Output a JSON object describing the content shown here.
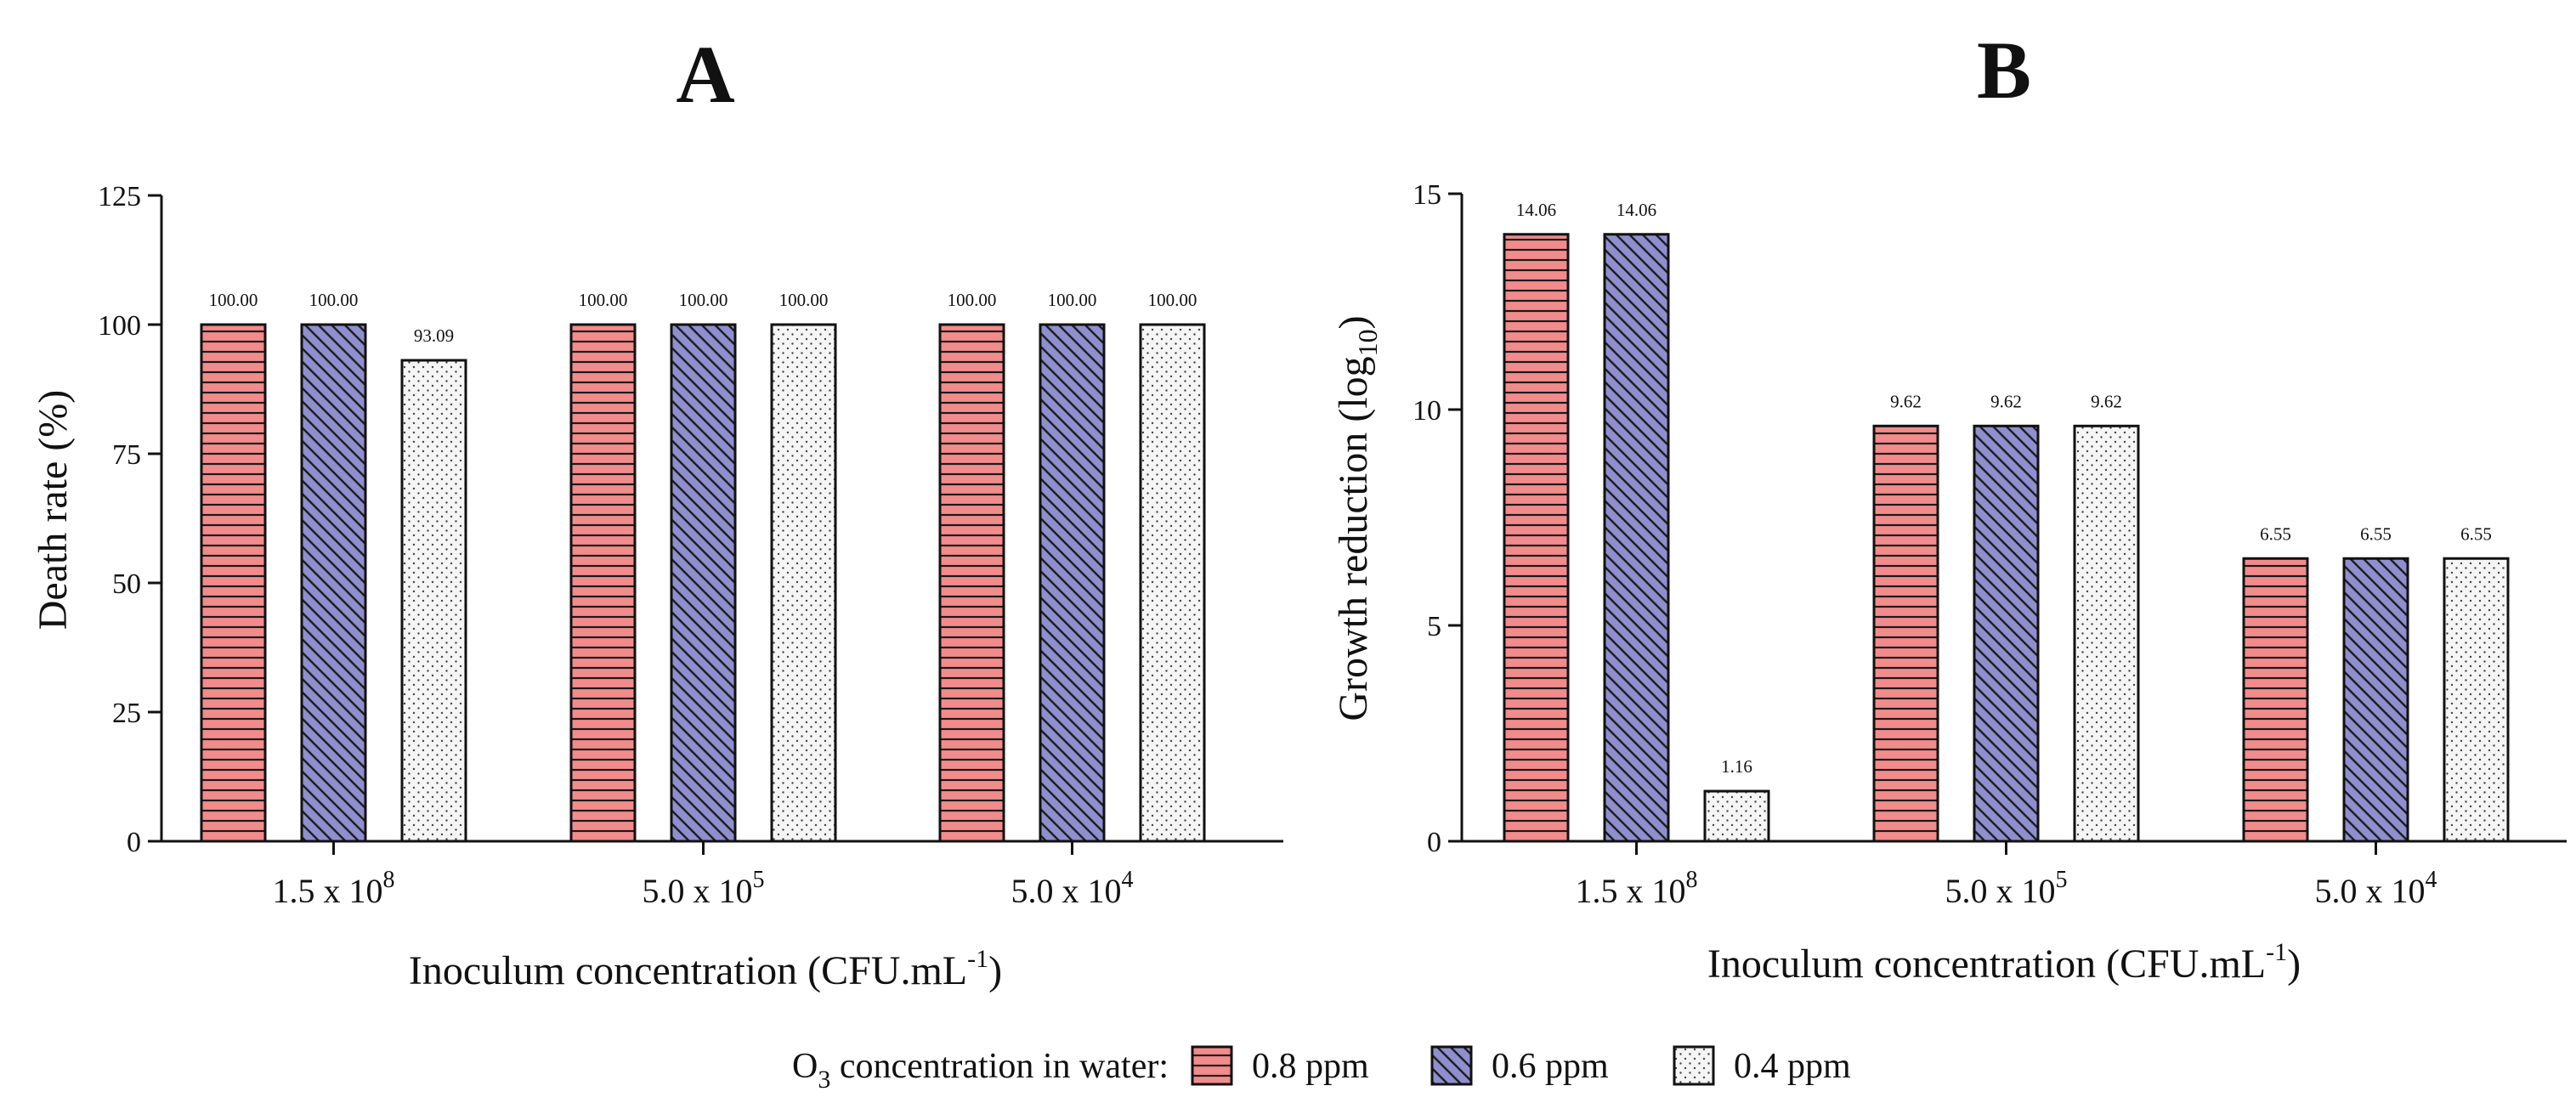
{
  "legend": {
    "title_prefix": "O",
    "title_sub": "3",
    "title_rest": " concentration in water:",
    "items": [
      {
        "label": "0.8 ppm",
        "pattern": "horizontal",
        "color": "#f28b8b"
      },
      {
        "label": "0.6 ppm",
        "pattern": "diagonal",
        "color": "#8f8fcf"
      },
      {
        "label": "0.4 ppm",
        "pattern": "dots",
        "color": "#f5f5f5"
      }
    ]
  },
  "chart_data": [
    {
      "type": "bar",
      "panel": "A",
      "title": "A",
      "ylabel": "Death rate (%)",
      "xlabel": {
        "main": "Inoculum concentration (CFU.mL",
        "sup": "-1",
        "end": ")"
      },
      "ylim": [
        0,
        125
      ],
      "yticks": [
        0,
        25,
        50,
        75,
        100,
        125
      ],
      "categories": [
        {
          "base": "1.5 x 10",
          "exp": "8"
        },
        {
          "base": "5.0 x 10",
          "exp": "5"
        },
        {
          "base": "5.0 x 10",
          "exp": "4"
        }
      ],
      "series": [
        {
          "name": "0.8 ppm",
          "values": [
            100.0,
            100.0,
            100.0
          ],
          "labels": [
            "100.00",
            "100.00",
            "100.00"
          ]
        },
        {
          "name": "0.6 ppm",
          "values": [
            100.0,
            100.0,
            100.0
          ],
          "labels": [
            "100.00",
            "100.00",
            "100.00"
          ]
        },
        {
          "name": "0.4 ppm",
          "values": [
            93.09,
            100.0,
            100.0
          ],
          "labels": [
            "93.09",
            "100.00",
            "100.00"
          ]
        }
      ]
    },
    {
      "type": "bar",
      "panel": "B",
      "title": "B",
      "ylabel": {
        "main": "Growth reduction (log",
        "sub": "10",
        "end": ")"
      },
      "xlabel": {
        "main": "Inoculum concentration (CFU.mL",
        "sup": "-1",
        "end": ")"
      },
      "ylim": [
        0,
        15
      ],
      "yticks": [
        0,
        5,
        10,
        15
      ],
      "categories": [
        {
          "base": "1.5 x 10",
          "exp": "8"
        },
        {
          "base": "5.0 x 10",
          "exp": "5"
        },
        {
          "base": "5.0 x 10",
          "exp": "4"
        }
      ],
      "series": [
        {
          "name": "0.8 ppm",
          "values": [
            14.06,
            9.62,
            6.55
          ],
          "labels": [
            "14.06",
            "9.62",
            "6.55"
          ]
        },
        {
          "name": "0.6 ppm",
          "values": [
            14.06,
            9.62,
            6.55
          ],
          "labels": [
            "14.06",
            "9.62",
            "6.55"
          ]
        },
        {
          "name": "0.4 ppm",
          "values": [
            1.16,
            9.62,
            6.55
          ],
          "labels": [
            "1.16",
            "9.62",
            "6.55"
          ]
        }
      ]
    }
  ]
}
